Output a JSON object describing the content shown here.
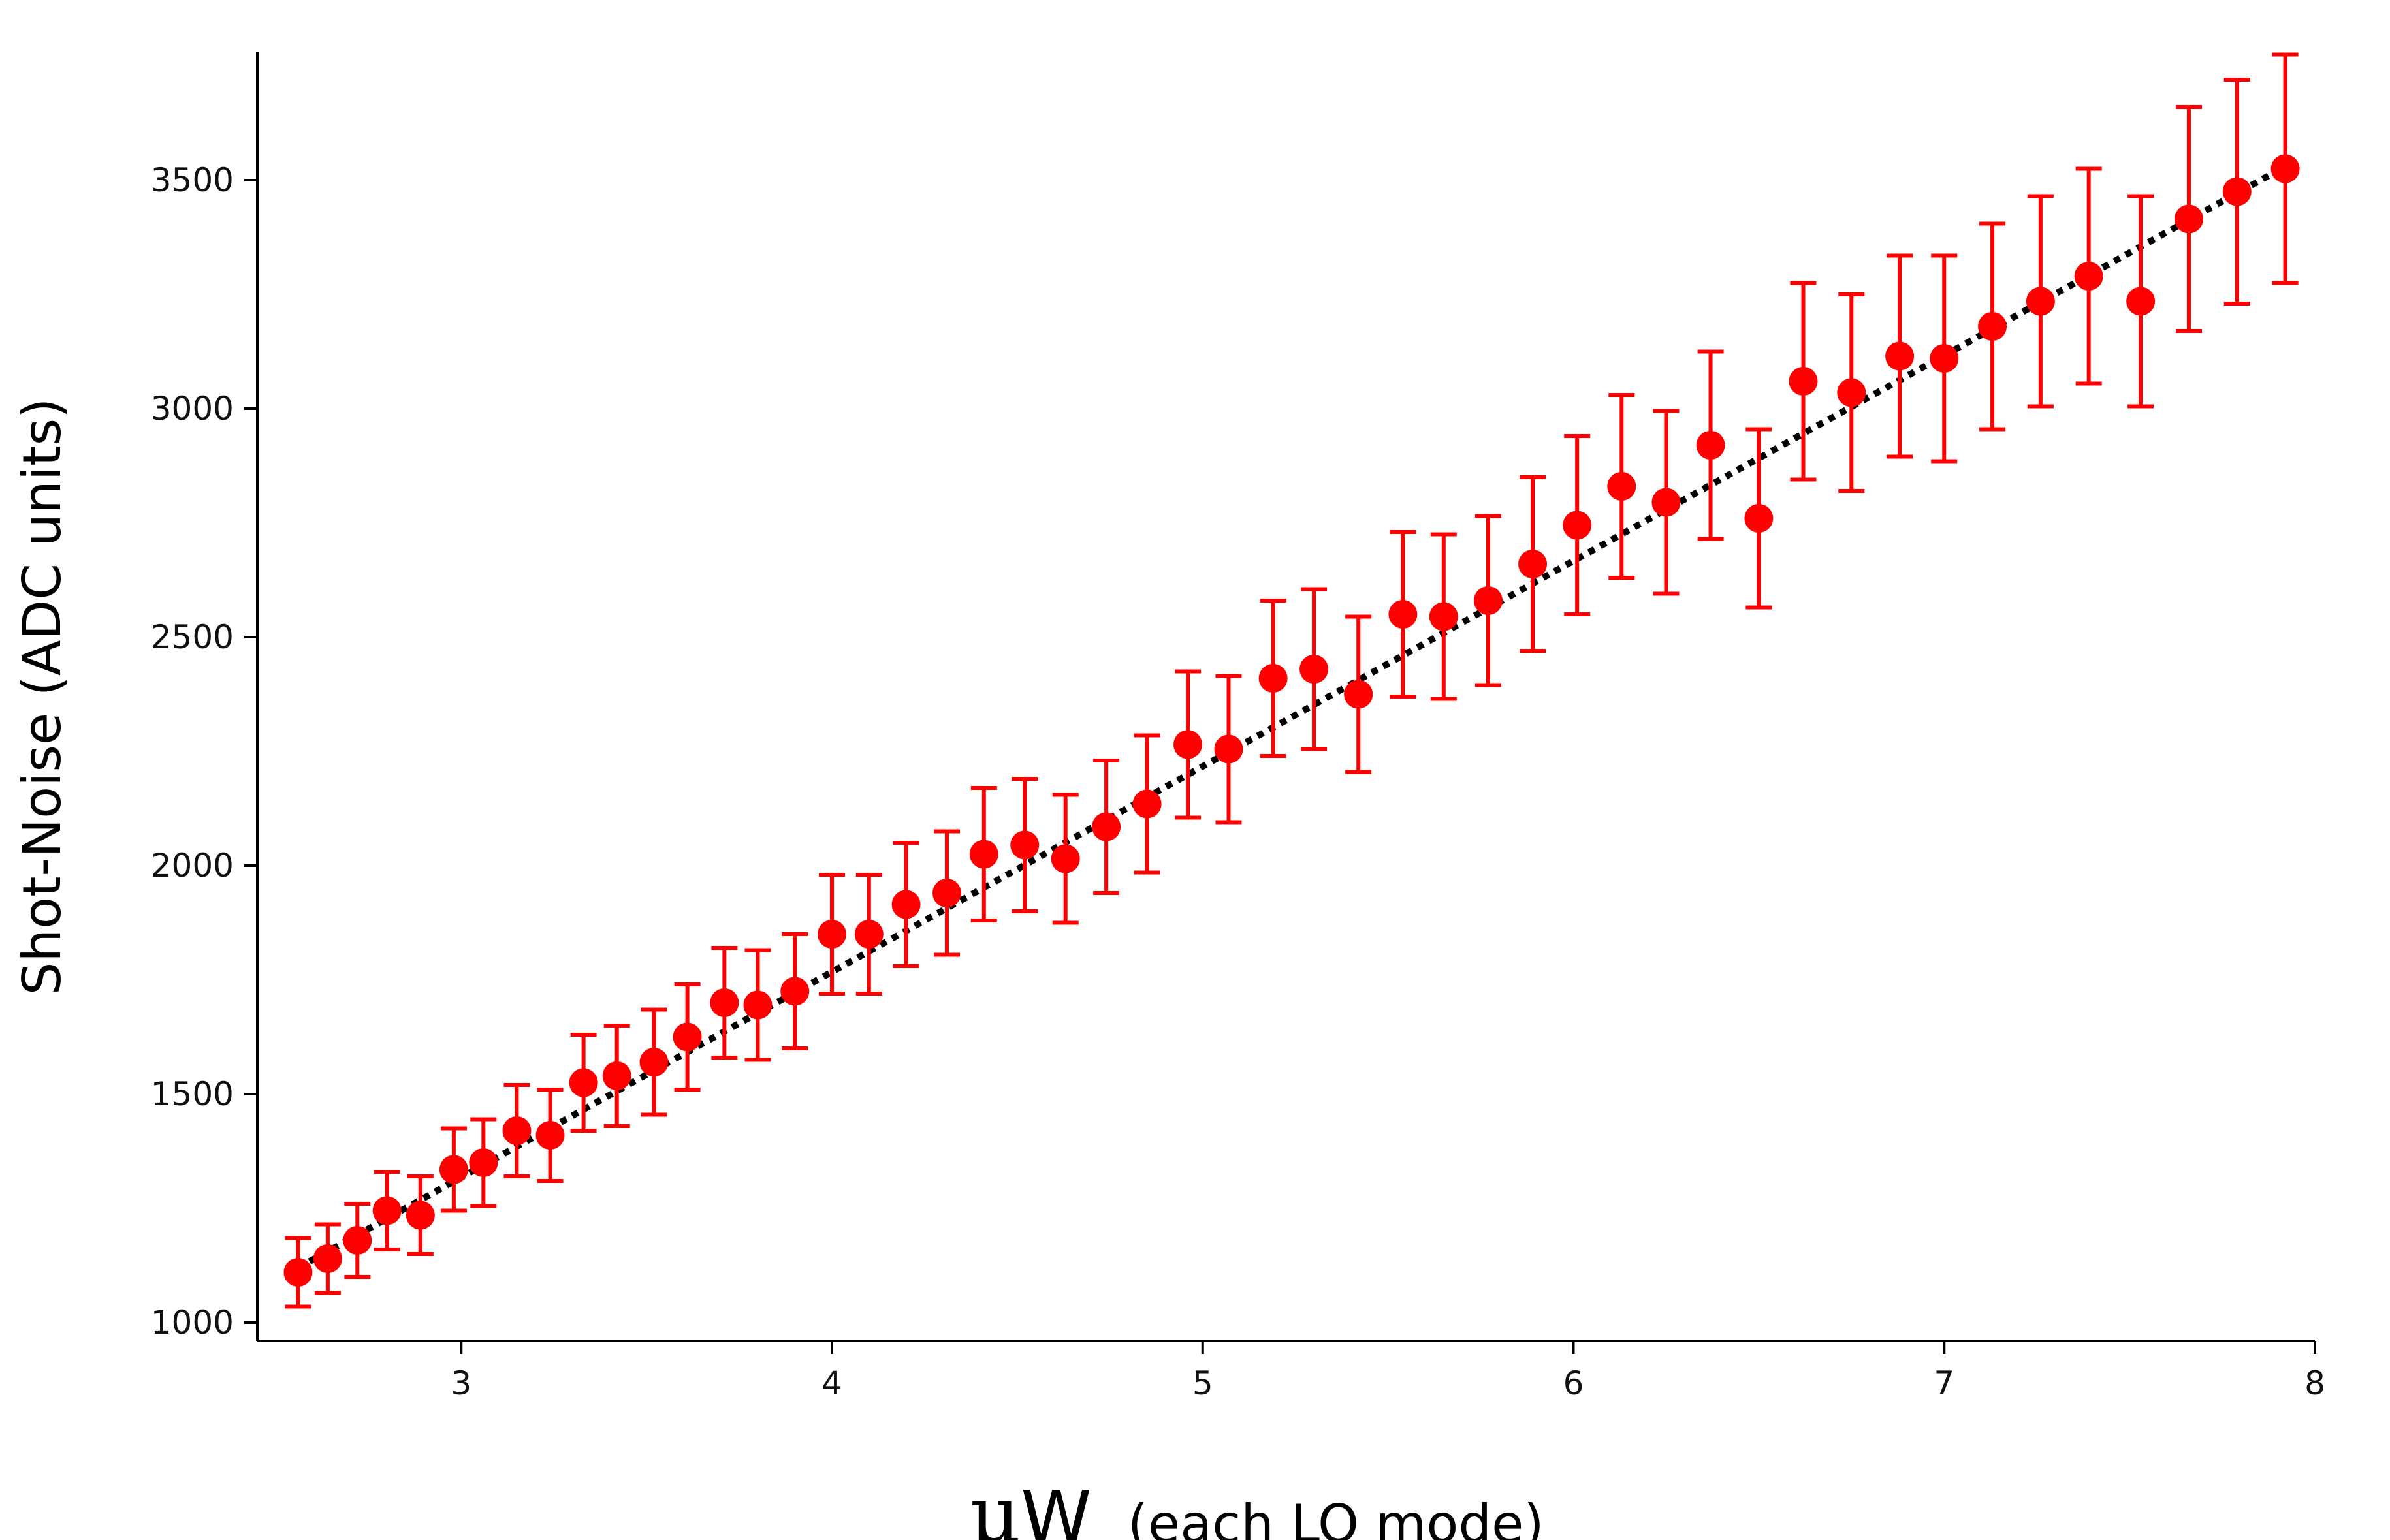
{
  "chart_data": {
    "type": "scatter",
    "xlabel_unit_symbol": "μ",
    "xlabel_unit_letter": "W",
    "xlabel_note": "(each LO mode)",
    "ylabel": "Shot-Noise (ADC units)",
    "xlim": [
      2.45,
      8.0
    ],
    "ylim": [
      960,
      3780
    ],
    "x_ticks": [
      3,
      4,
      5,
      6,
      7,
      8
    ],
    "y_ticks": [
      1000,
      1500,
      2000,
      2500,
      3000,
      3500
    ],
    "grid": false,
    "legend": "none",
    "colors": {
      "points": "#ff0000",
      "errorbars": "#ff0000",
      "fit": "#000000"
    },
    "series": [
      {
        "style": "markers-with-errorbars",
        "x": [
          2.56,
          2.64,
          2.72,
          2.8,
          2.89,
          2.98,
          3.06,
          3.15,
          3.24,
          3.33,
          3.42,
          3.52,
          3.61,
          3.71,
          3.8,
          3.9,
          4.0,
          4.1,
          4.2,
          4.31,
          4.41,
          4.52,
          4.63,
          4.74,
          4.85,
          4.96,
          5.07,
          5.19,
          5.3,
          5.42,
          5.54,
          5.65,
          5.77,
          5.89,
          6.01,
          6.13,
          6.25,
          6.37,
          6.5,
          6.62,
          6.75,
          6.88,
          7.0,
          7.13,
          7.26,
          7.39,
          7.53,
          7.66,
          7.79,
          7.92
        ],
        "y": [
          1110,
          1140,
          1180,
          1245,
          1235,
          1335,
          1350,
          1420,
          1410,
          1525,
          1540,
          1570,
          1625,
          1700,
          1695,
          1725,
          1850,
          1850,
          1915,
          1940,
          2025,
          2045,
          2015,
          2085,
          2135,
          2265,
          2255,
          2410,
          2430,
          2375,
          2550,
          2545,
          2580,
          2660,
          2745,
          2830,
          2795,
          2920,
          2760,
          3060,
          3035,
          3115,
          3110,
          3180,
          3235,
          3290,
          3235,
          3415,
          3475,
          3525
        ],
        "err": [
          75,
          75,
          80,
          85,
          85,
          90,
          95,
          100,
          100,
          105,
          110,
          115,
          115,
          120,
          120,
          125,
          130,
          130,
          135,
          135,
          145,
          145,
          140,
          145,
          150,
          160,
          160,
          170,
          175,
          170,
          180,
          180,
          185,
          190,
          195,
          200,
          200,
          205,
          195,
          215,
          215,
          220,
          225,
          225,
          230,
          235,
          230,
          245,
          245,
          250
        ]
      },
      {
        "style": "dotted-line",
        "x": [
          2.56,
          7.92
        ],
        "y": [
          1120,
          3530
        ]
      }
    ]
  }
}
